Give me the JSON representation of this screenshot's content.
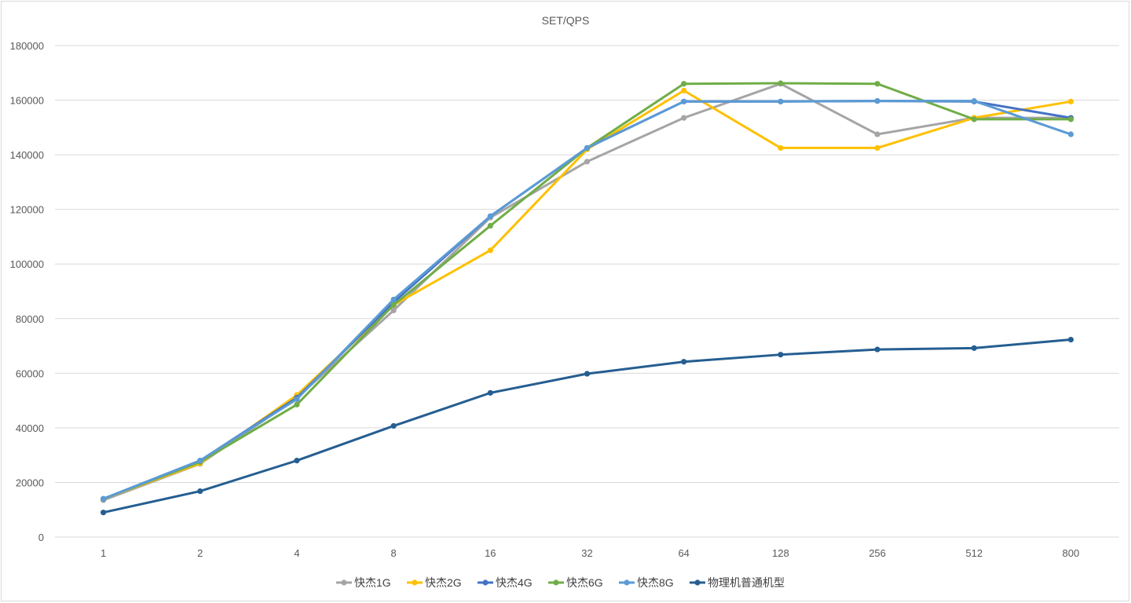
{
  "chart_data": {
    "type": "line",
    "title": "SET/QPS",
    "xlabel": "",
    "ylabel": "",
    "categories": [
      "1",
      "2",
      "4",
      "8",
      "16",
      "32",
      "64",
      "128",
      "256",
      "512",
      "800"
    ],
    "ylim": [
      0,
      180000
    ],
    "yticks": [
      "0",
      "20000",
      "40000",
      "60000",
      "80000",
      "100000",
      "120000",
      "140000",
      "160000",
      "180000"
    ],
    "grid": true,
    "legend_position": "bottom",
    "series": [
      {
        "name": "快杰1G",
        "color": "#a5a5a5",
        "values": [
          13500,
          26800,
          51000,
          83000,
          117000,
          137500,
          153500,
          166000,
          147500,
          153500,
          153500
        ]
      },
      {
        "name": "快杰2G",
        "color": "#ffc000",
        "values": [
          14000,
          27000,
          52000,
          85000,
          105000,
          142000,
          163500,
          142500,
          142500,
          153500,
          159500
        ]
      },
      {
        "name": "快杰4G",
        "color": "#4472c4",
        "values": [
          14000,
          28000,
          51000,
          86000,
          117500,
          142500,
          159500,
          159500,
          159700,
          159500,
          153500
        ]
      },
      {
        "name": "快杰6G",
        "color": "#70ad47",
        "values": [
          14000,
          27500,
          48500,
          85000,
          114000,
          142500,
          166000,
          166200,
          166000,
          153000,
          153000
        ]
      },
      {
        "name": "快杰8G",
        "color": "#5b9bd5",
        "values": [
          14000,
          28000,
          50500,
          87000,
          117500,
          142500,
          159500,
          159500,
          159700,
          159700,
          147500
        ]
      },
      {
        "name": "物理机普通机型",
        "color": "#255e91",
        "values": [
          9000,
          16800,
          28000,
          40700,
          52800,
          59800,
          64200,
          66800,
          68700,
          69200,
          72300
        ]
      }
    ]
  }
}
